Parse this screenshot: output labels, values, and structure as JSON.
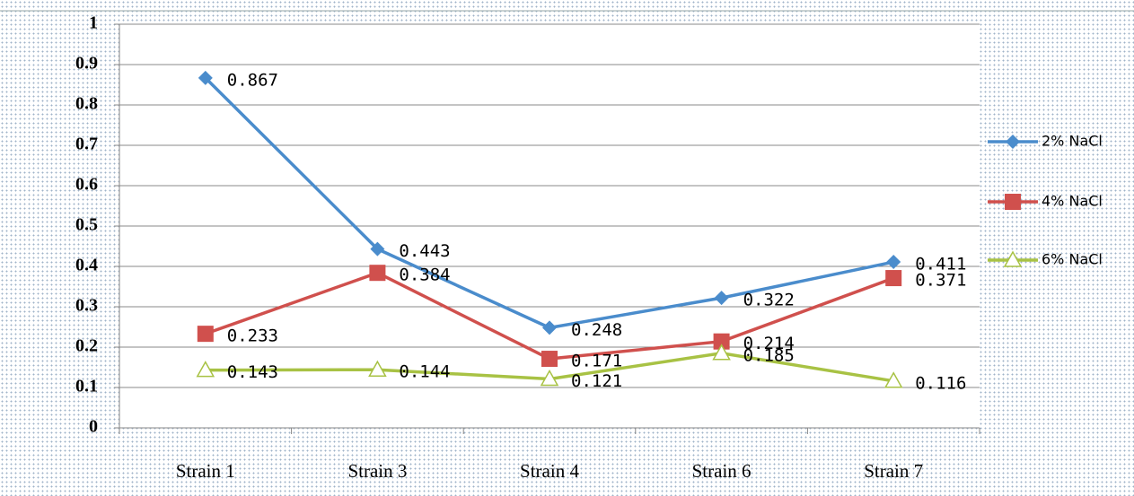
{
  "chart_data": {
    "type": "line",
    "categories": [
      "Strain 1",
      "Strain 3",
      "Strain 4",
      "Strain 6",
      "Strain 7"
    ],
    "series": [
      {
        "name": "2% NaCl",
        "color": "#4a8ccc",
        "marker": "diamond",
        "values": [
          0.867,
          0.443,
          0.248,
          0.322,
          0.411
        ]
      },
      {
        "name": "4% NaCl",
        "color": "#d0504d",
        "marker": "square",
        "values": [
          0.233,
          0.384,
          0.171,
          0.214,
          0.371
        ]
      },
      {
        "name": "6% NaCl",
        "color": "#a8c244",
        "marker": "triangle",
        "values": [
          0.143,
          0.144,
          0.121,
          0.185,
          0.116
        ]
      }
    ],
    "ylim": [
      0,
      1
    ],
    "yticks": [
      0,
      0.1,
      0.2,
      0.3,
      0.4,
      0.5,
      0.6,
      0.7,
      0.8,
      0.9,
      1
    ],
    "grid": true,
    "legend": "right",
    "data_labels": true
  }
}
